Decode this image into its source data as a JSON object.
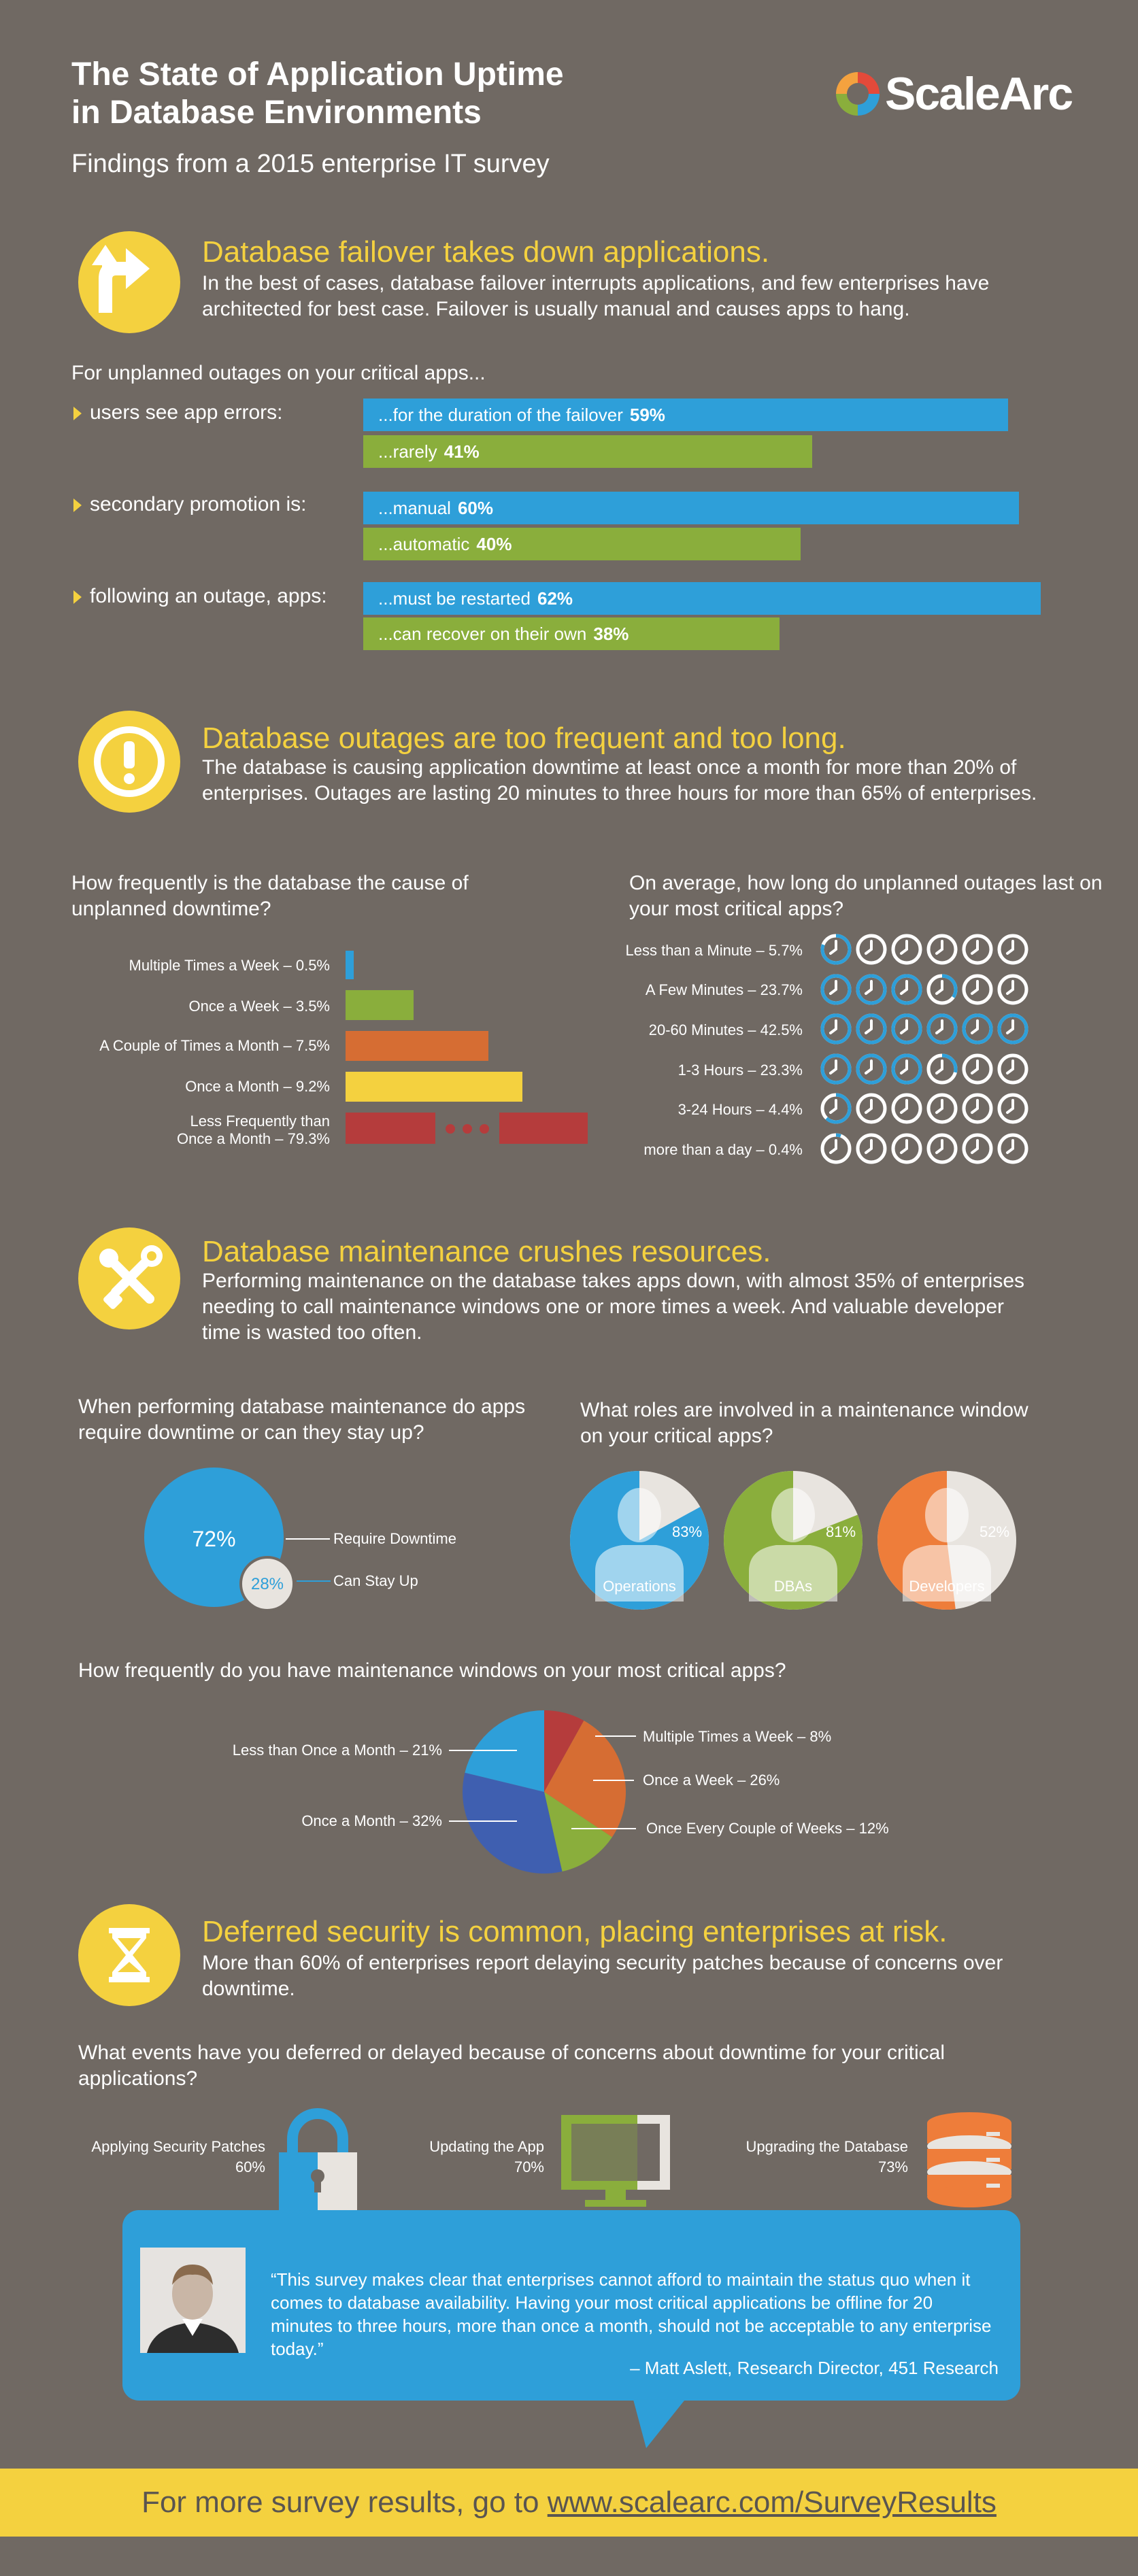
{
  "header": {
    "title_line1": "The State of Application Uptime",
    "title_line2": "in Database Environments",
    "subtitle": "Findings from a 2015 enterprise IT survey",
    "logo_text": "ScaleArc"
  },
  "section1": {
    "title": "Database failover takes down applications.",
    "body": "In the best of cases, database failover interrupts applications, and few enterprises have architected for best case. Failover is usually manual and causes apps to hang.",
    "intro": "For unplanned outages on your critical apps...",
    "rows": [
      {
        "label": "users see app errors:",
        "bars": [
          {
            "text": "...for the duration of the failover",
            "pct": "59%",
            "value": 59
          },
          {
            "text": "...rarely",
            "pct": "41%",
            "value": 41
          }
        ]
      },
      {
        "label": "secondary promotion is:",
        "bars": [
          {
            "text": "...manual",
            "pct": "60%",
            "value": 60
          },
          {
            "text": "...automatic",
            "pct": "40%",
            "value": 40
          }
        ]
      },
      {
        "label": "following an outage, apps:",
        "bars": [
          {
            "text": "...must be restarted",
            "pct": "62%",
            "value": 62
          },
          {
            "text": "...can recover on their own",
            "pct": "38%",
            "value": 38
          }
        ]
      }
    ]
  },
  "section2": {
    "title": "Database outages are too frequent and too long.",
    "body": "The database is causing application downtime at least once a month for more than 20% of enterprises. Outages are lasting 20 minutes to three hours for more than 65% of enterprises.",
    "q_left": "How frequently is the database the cause of unplanned downtime?",
    "q_right": "On average, how long do unplanned outages last on your most critical apps?",
    "freq": [
      {
        "label": "Multiple Times a Week – 0.5%",
        "value": 0.5,
        "color": "#2e9fd9"
      },
      {
        "label": "Once a Week – 3.5%",
        "value": 3.5,
        "color": "#8aae3c"
      },
      {
        "label": "A Couple of Times a Month – 7.5%",
        "value": 7.5,
        "color": "#d66d33"
      },
      {
        "label": "Once a Month – 9.2%",
        "value": 9.2,
        "color": "#f4d13f"
      },
      {
        "label_line1": "Less Frequently than",
        "label_line2": "Once a Month – 79.3%",
        "value": 79.3,
        "color": "#b53c3c"
      }
    ],
    "duration": [
      {
        "label": "Less than a Minute – 5.7%",
        "value": 5.7
      },
      {
        "label": "A Few Minutes – 23.7%",
        "value": 23.7
      },
      {
        "label": "20-60 Minutes – 42.5%",
        "value": 42.5
      },
      {
        "label": "1-3 Hours – 23.3%",
        "value": 23.3
      },
      {
        "label": "3-24 Hours – 4.4%",
        "value": 4.4
      },
      {
        "label": "more than a day – 0.4%",
        "value": 0.4
      }
    ]
  },
  "section3": {
    "title": "Database maintenance crushes resources.",
    "body": "Performing maintenance on the database takes apps down, with almost 35% of enterprises needing to call maintenance windows one or more times a week. And valuable developer time is wasted too often.",
    "q_left": "When performing database maintenance do apps require downtime or can they stay up?",
    "q_right": "What roles are involved in a maintenance window on your critical apps?",
    "downtime": {
      "require_pct": "72%",
      "require_label": "Require Downtime",
      "stay_pct": "28%",
      "stay_label": "Can Stay Up"
    },
    "roles": [
      {
        "name": "Operations",
        "pct": "83%",
        "value": 83,
        "color": "#2e9fd9"
      },
      {
        "name": "DBAs",
        "pct": "81%",
        "value": 81,
        "color": "#8aae3c"
      },
      {
        "name": "Developers",
        "pct": "52%",
        "value": 52,
        "color": "#ee7d3a"
      }
    ],
    "q_pie": "How frequently do you have maintenance windows on your most critical apps?",
    "pie": [
      {
        "label": "Multiple Times a Week – 8%",
        "value": 8,
        "color": "#b53c3c"
      },
      {
        "label": "Once a Week – 26%",
        "value": 26,
        "color": "#d66d33"
      },
      {
        "label": "Once Every Couple of Weeks – 12%",
        "value": 12,
        "color": "#8aae3c"
      },
      {
        "label": "Once a Month – 32%",
        "value": 32,
        "color": "#3f5fb0"
      },
      {
        "label": "Less than Once a Month – 21%",
        "value": 21,
        "color": "#2e9fd9"
      }
    ]
  },
  "section4": {
    "title": "Deferred security is common, placing enterprises at risk.",
    "body": "More than 60% of enterprises report delaying security patches because of concerns over downtime.",
    "question": "What events have you deferred or delayed because of concerns about downtime for your critical applications?",
    "events": [
      {
        "label": "Applying Security Patches",
        "pct": "60%"
      },
      {
        "label": "Updating the App",
        "pct": "70%"
      },
      {
        "label": "Upgrading the Database",
        "pct": "73%"
      }
    ]
  },
  "quote": {
    "text": "“This survey makes clear that enterprises cannot afford to maintain the status quo when it comes to database availability. Having your most critical applications be offline for 20 minutes to three hours, more than once a month, should not be acceptable to any enterprise today.”",
    "attribution": "– Matt Aslett, Research Director, 451 Research"
  },
  "footer": {
    "text": "For more survey results, go to ",
    "link": "www.scalearc.com/SurveyResults"
  }
}
